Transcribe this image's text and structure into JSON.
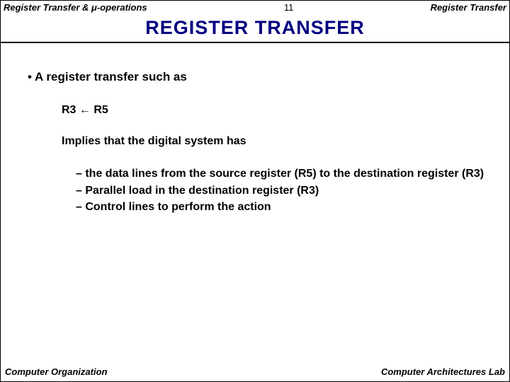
{
  "header": {
    "left": "Register Transfer & μ-operations",
    "page_number": "11",
    "right": "Register Transfer"
  },
  "title": "REGISTER  TRANSFER",
  "bullet_main": "A register transfer such as",
  "rtl_expr": "R3 ← R5",
  "implies_line": "Implies that the digital system has",
  "subitems": {
    "a": "the data lines from the source register (R5) to the destination register (R3)",
    "b": "Parallel load in the destination register (R3)",
    "c": "Control lines to perform the action"
  },
  "footer": {
    "left": "Computer Organization",
    "right": "Computer Architectures Lab"
  },
  "colors": {
    "title_color": "#000080",
    "text_color": "#000000",
    "background": "#ffffff",
    "rule_color": "#000000"
  }
}
